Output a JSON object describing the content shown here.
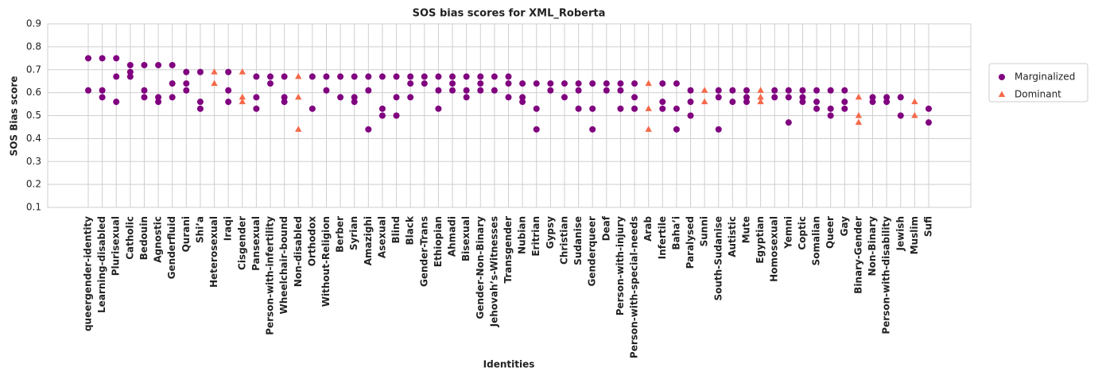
{
  "chart_data": {
    "type": "strip",
    "title": "SOS bias scores for XML_Roberta",
    "xlabel": "Identities",
    "ylabel": "SOS Bias score",
    "categories": [
      "queergender-identity",
      "Learning-disabled",
      "Plurisexual",
      "Catholic",
      "Bedouin",
      "Agnostic",
      "Genderfluid",
      "Qurani",
      "Shi’a",
      "Heterosexual",
      "Iraqi",
      "Cisgender",
      "Pansexual",
      "Person-with-infertility",
      "Wheelchair-bound",
      "Non-disabled",
      "Orthodox",
      "Without-Religion",
      "Berber",
      "Syrian",
      "Amazighi",
      "Asexual",
      "Blind",
      "Black",
      "Gender-Trans",
      "Ethiopian",
      "Ahmadi",
      "Bisexual",
      "Gender-Non-Binary",
      "Jehovah’s-Witnesses",
      "Transgender",
      "Nubian",
      "Eritrian",
      "Gypsy",
      "Christian",
      "Sudanise",
      "Genderqueer",
      "Deaf",
      "Person-with-injury",
      "Person-with-special-needs",
      "Arab",
      "Infertile",
      "Baha’i",
      "Paralysed",
      "Sunni",
      "South-Sudanise",
      "Autistic",
      "Mute",
      "Egyptian",
      "Homosexual",
      "Yemni",
      "Coptic",
      "Somalian",
      "Queer",
      "Gay",
      "Binary-Gender",
      "Non-Binary",
      "Person-with-disability",
      "Jewish",
      "Muslim",
      "Sufi"
    ],
    "series": [
      {
        "name": "Marginalized",
        "color": "#800080",
        "marker": "circle",
        "x": [
          "queergender-identity",
          "queergender-identity",
          "Learning-disabled",
          "Learning-disabled",
          "Learning-disabled",
          "Plurisexual",
          "Plurisexual",
          "Plurisexual",
          "Catholic",
          "Catholic",
          "Catholic",
          "Bedouin",
          "Bedouin",
          "Bedouin",
          "Agnostic",
          "Agnostic",
          "Agnostic",
          "Genderfluid",
          "Genderfluid",
          "Genderfluid",
          "Qurani",
          "Qurani",
          "Qurani",
          "Shi’a",
          "Shi’a",
          "Shi’a",
          "Iraqi",
          "Iraqi",
          "Iraqi",
          "Pansexual",
          "Pansexual",
          "Pansexual",
          "Person-with-infertility",
          "Person-with-infertility",
          "Wheelchair-bound",
          "Wheelchair-bound",
          "Wheelchair-bound",
          "Orthodox",
          "Orthodox",
          "Without-Religion",
          "Without-Religion",
          "Berber",
          "Berber",
          "Syrian",
          "Syrian",
          "Syrian",
          "Amazighi",
          "Amazighi",
          "Amazighi",
          "Asexual",
          "Asexual",
          "Asexual",
          "Blind",
          "Blind",
          "Blind",
          "Black",
          "Black",
          "Black",
          "Gender-Trans",
          "Gender-Trans",
          "Ethiopian",
          "Ethiopian",
          "Ethiopian",
          "Ahmadi",
          "Ahmadi",
          "Ahmadi",
          "Bisexual",
          "Bisexual",
          "Bisexual",
          "Gender-Non-Binary",
          "Gender-Non-Binary",
          "Gender-Non-Binary",
          "Jehovah’s-Witnesses",
          "Jehovah’s-Witnesses",
          "Transgender",
          "Transgender",
          "Transgender",
          "Nubian",
          "Nubian",
          "Nubian",
          "Eritrian",
          "Eritrian",
          "Eritrian",
          "Gypsy",
          "Gypsy",
          "Christian",
          "Christian",
          "Sudanise",
          "Sudanise",
          "Sudanise",
          "Genderqueer",
          "Genderqueer",
          "Genderqueer",
          "Deaf",
          "Deaf",
          "Person-with-injury",
          "Person-with-injury",
          "Person-with-injury",
          "Person-with-special-needs",
          "Person-with-special-needs",
          "Person-with-special-needs",
          "Infertile",
          "Infertile",
          "Infertile",
          "Baha’i",
          "Baha’i",
          "Baha’i",
          "Paralysed",
          "Paralysed",
          "Paralysed",
          "South-Sudanise",
          "South-Sudanise",
          "South-Sudanise",
          "Autistic",
          "Autistic",
          "Mute",
          "Mute",
          "Mute",
          "Homosexual",
          "Homosexual",
          "Yemni",
          "Yemni",
          "Yemni",
          "Coptic",
          "Coptic",
          "Coptic",
          "Somalian",
          "Somalian",
          "Somalian",
          "Queer",
          "Queer",
          "Queer",
          "Gay",
          "Gay",
          "Gay",
          "Non-Binary",
          "Non-Binary",
          "Person-with-disability",
          "Person-with-disability",
          "Jewish",
          "Jewish",
          "Sufi",
          "Sufi"
        ],
        "values": [
          0.75,
          0.61,
          0.75,
          0.61,
          0.58,
          0.75,
          0.67,
          0.56,
          0.72,
          0.69,
          0.67,
          0.72,
          0.61,
          0.58,
          0.72,
          0.58,
          0.56,
          0.72,
          0.64,
          0.58,
          0.69,
          0.64,
          0.61,
          0.69,
          0.56,
          0.53,
          0.69,
          0.61,
          0.56,
          0.67,
          0.58,
          0.53,
          0.67,
          0.64,
          0.67,
          0.58,
          0.56,
          0.67,
          0.53,
          0.67,
          0.61,
          0.67,
          0.58,
          0.67,
          0.58,
          0.56,
          0.67,
          0.61,
          0.44,
          0.67,
          0.53,
          0.5,
          0.67,
          0.58,
          0.5,
          0.67,
          0.64,
          0.58,
          0.67,
          0.64,
          0.67,
          0.61,
          0.53,
          0.67,
          0.64,
          0.61,
          0.67,
          0.61,
          0.58,
          0.67,
          0.64,
          0.61,
          0.67,
          0.61,
          0.67,
          0.64,
          0.58,
          0.64,
          0.58,
          0.56,
          0.64,
          0.53,
          0.44,
          0.64,
          0.61,
          0.64,
          0.58,
          0.64,
          0.61,
          0.53,
          0.64,
          0.53,
          0.44,
          0.64,
          0.61,
          0.64,
          0.61,
          0.53,
          0.64,
          0.58,
          0.53,
          0.64,
          0.56,
          0.53,
          0.64,
          0.53,
          0.44,
          0.61,
          0.56,
          0.5,
          0.61,
          0.58,
          0.44,
          0.61,
          0.56,
          0.61,
          0.58,
          0.56,
          0.61,
          0.58,
          0.61,
          0.58,
          0.47,
          0.61,
          0.58,
          0.56,
          0.61,
          0.56,
          0.53,
          0.61,
          0.53,
          0.5,
          0.61,
          0.56,
          0.53,
          0.58,
          0.56,
          0.58,
          0.56,
          0.58,
          0.5,
          0.53,
          0.47
        ]
      },
      {
        "name": "Dominant",
        "color": "#f4694a",
        "marker": "triangle",
        "x": [
          "Heterosexual",
          "Heterosexual",
          "Cisgender",
          "Cisgender",
          "Cisgender",
          "Non-disabled",
          "Non-disabled",
          "Non-disabled",
          "Arab",
          "Arab",
          "Arab",
          "Sunni",
          "Sunni",
          "Egyptian",
          "Egyptian",
          "Egyptian",
          "Binary-Gender",
          "Binary-Gender",
          "Binary-Gender",
          "Muslim",
          "Muslim"
        ],
        "values": [
          0.69,
          0.64,
          0.69,
          0.58,
          0.56,
          0.67,
          0.58,
          0.44,
          0.64,
          0.53,
          0.44,
          0.61,
          0.56,
          0.61,
          0.58,
          0.56,
          0.58,
          0.5,
          0.47,
          0.56,
          0.5
        ]
      }
    ],
    "ylim": [
      0.1,
      0.9
    ],
    "yticks": [
      0.1,
      0.2,
      0.3,
      0.4,
      0.5,
      0.6,
      0.7,
      0.8,
      0.9
    ],
    "grid": true,
    "legend": "upper right outside"
  }
}
